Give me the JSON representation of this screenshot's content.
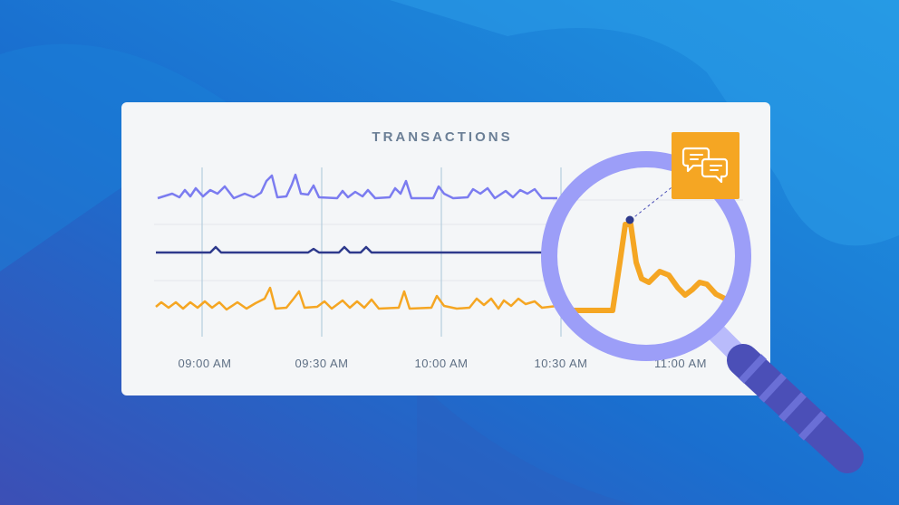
{
  "title": "TRANSACTIONS",
  "time_labels": [
    "09:00 AM",
    "09:30 AM",
    "10:00 AM",
    "10:30 AM",
    "11:00 AM"
  ]
}
